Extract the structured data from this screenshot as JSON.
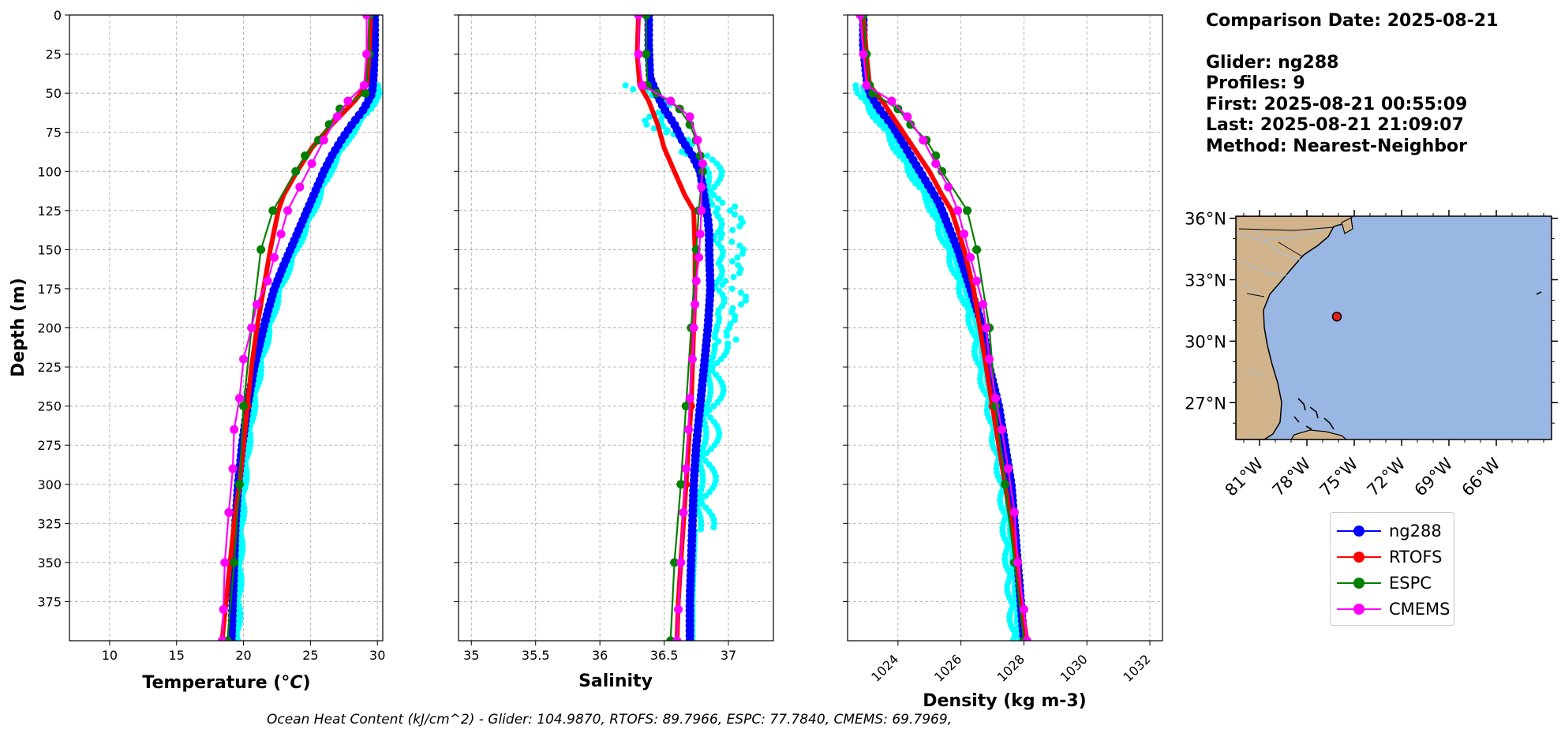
{
  "info": {
    "comparison_date": "Comparison Date: 2025-08-21",
    "glider": "Glider: ng288",
    "profiles": "Profiles: 9",
    "first": "First: 2025-08-21 00:55:09",
    "last": "Last: 2025-08-21 21:09:07",
    "method": "Method: Nearest-Neighbor"
  },
  "footer": "Ocean Heat Content (kJ/cm^2) - Glider: 104.9870,  RTOFS: 89.7966,  ESPC: 77.7840,  CMEMS: 69.7969,",
  "colors": {
    "ng288": "#0000ff",
    "ng288_raw": "#00ffff",
    "RTOFS": "#ff0000",
    "ESPC": "#008000",
    "CMEMS": "#ff00ff",
    "land": "#d2b48c",
    "ocean": "#9ab7e4",
    "grid": "#b0b0b0"
  },
  "legend": [
    {
      "name": "ng288",
      "color": "#0000ff"
    },
    {
      "name": "RTOFS",
      "color": "#ff0000"
    },
    {
      "name": "ESPC",
      "color": "#008000"
    },
    {
      "name": "CMEMS",
      "color": "#ff00ff"
    }
  ],
  "chart_data": [
    {
      "type": "line",
      "xlabel": "Temperature (°C)",
      "ylabel": "Depth (m)",
      "xlim": [
        7,
        30.4
      ],
      "ylim": [
        400,
        0
      ],
      "grid": true,
      "xticks": [
        10,
        15,
        20,
        25,
        30
      ],
      "yticks": [
        0,
        25,
        50,
        75,
        100,
        125,
        150,
        175,
        200,
        225,
        250,
        275,
        300,
        325,
        350,
        375
      ],
      "series": [
        {
          "name": "ng288",
          "depth": [
            0,
            20,
            40,
            50,
            60,
            70,
            80,
            90,
            100,
            110,
            120,
            130,
            140,
            150,
            160,
            175,
            190,
            200,
            225,
            250,
            275,
            300,
            325,
            350,
            375,
            400
          ],
          "values": [
            29.8,
            29.8,
            29.7,
            29.6,
            29.0,
            28.1,
            27.3,
            26.6,
            26.0,
            25.5,
            25.0,
            24.5,
            24.0,
            23.5,
            23.0,
            22.3,
            21.8,
            21.5,
            20.8,
            20.3,
            19.9,
            19.6,
            19.4,
            19.3,
            19.2,
            19.1
          ]
        },
        {
          "name": "RTOFS",
          "depth": [
            0,
            25,
            45,
            55,
            70,
            85,
            100,
            115,
            125,
            150,
            175,
            200,
            225,
            250,
            275,
            300,
            325,
            350,
            375,
            400
          ],
          "values": [
            29.5,
            29.4,
            29.2,
            28.3,
            26.6,
            25.1,
            24.0,
            23.0,
            22.6,
            22.0,
            21.5,
            21.0,
            20.6,
            20.3,
            20.0,
            19.7,
            19.3,
            19.0,
            18.7,
            18.4
          ]
        },
        {
          "name": "ESPC",
          "depth": [
            0,
            25,
            50,
            60,
            70,
            80,
            90,
            100,
            125,
            150,
            200,
            250,
            300,
            350,
            400
          ],
          "values": [
            29.4,
            29.4,
            29.1,
            27.2,
            26.4,
            25.6,
            24.6,
            23.9,
            22.2,
            21.3,
            20.6,
            20.0,
            19.7,
            19.3,
            18.8
          ]
        },
        {
          "name": "CMEMS",
          "depth": [
            0,
            25,
            45,
            55,
            65,
            80,
            95,
            110,
            125,
            140,
            155,
            170,
            185,
            200,
            220,
            245,
            265,
            290,
            318,
            350,
            380,
            400
          ],
          "values": [
            29.2,
            29.2,
            29.0,
            27.8,
            27.0,
            26.0,
            25.1,
            24.2,
            23.3,
            22.8,
            22.3,
            21.8,
            21.0,
            20.6,
            20.0,
            19.7,
            19.3,
            19.2,
            18.9,
            18.6,
            18.5,
            18.4
          ]
        }
      ]
    },
    {
      "type": "line",
      "xlabel": "Salinity",
      "ylabel": "",
      "xlim": [
        34.9,
        37.35
      ],
      "ylim": [
        400,
        0
      ],
      "grid": true,
      "xticks": [
        35.0,
        35.5,
        36.0,
        36.5,
        37.0
      ],
      "series": [
        {
          "name": "ng288",
          "depth": [
            0,
            20,
            40,
            50,
            60,
            70,
            80,
            90,
            100,
            110,
            120,
            130,
            140,
            150,
            175,
            200,
            225,
            250,
            275,
            300,
            325,
            350,
            375,
            400
          ],
          "values": [
            36.38,
            36.38,
            36.39,
            36.44,
            36.5,
            36.58,
            36.64,
            36.72,
            36.78,
            36.8,
            36.82,
            36.84,
            36.85,
            36.85,
            36.86,
            36.84,
            36.81,
            36.78,
            36.75,
            36.73,
            36.72,
            36.71,
            36.7,
            36.7
          ]
        },
        {
          "name": "RTOFS",
          "depth": [
            0,
            25,
            45,
            55,
            70,
            85,
            100,
            115,
            125,
            150,
            175,
            200,
            225,
            250,
            275,
            300,
            325,
            350,
            375,
            400
          ],
          "values": [
            36.3,
            36.29,
            36.31,
            36.38,
            36.45,
            36.5,
            36.58,
            36.66,
            36.73,
            36.74,
            36.74,
            36.73,
            36.72,
            36.71,
            36.69,
            36.67,
            36.65,
            36.63,
            36.61,
            36.6
          ]
        },
        {
          "name": "ESPC",
          "depth": [
            0,
            25,
            45,
            50,
            60,
            70,
            80,
            90,
            100,
            125,
            150,
            200,
            250,
            300,
            350,
            400
          ],
          "values": [
            36.36,
            36.36,
            36.37,
            36.44,
            36.62,
            36.7,
            36.75,
            36.78,
            36.8,
            36.77,
            36.75,
            36.71,
            36.67,
            36.63,
            36.58,
            36.55
          ]
        },
        {
          "name": "CMEMS",
          "depth": [
            0,
            25,
            45,
            55,
            65,
            80,
            95,
            110,
            125,
            140,
            155,
            170,
            185,
            200,
            220,
            245,
            265,
            290,
            318,
            350,
            380,
            400
          ],
          "values": [
            36.3,
            36.3,
            36.33,
            36.55,
            36.7,
            36.76,
            36.8,
            36.79,
            36.79,
            36.78,
            36.77,
            36.75,
            36.74,
            36.73,
            36.72,
            36.7,
            36.69,
            36.67,
            36.65,
            36.63,
            36.61,
            36.6
          ]
        }
      ]
    },
    {
      "type": "line",
      "xlabel": "Density (kg m-3)",
      "ylabel": "",
      "xlim": [
        1022.4,
        1032.4
      ],
      "ylim": [
        400,
        0
      ],
      "grid": true,
      "xticks": [
        1024,
        1026,
        1028,
        1030,
        1032
      ],
      "series": [
        {
          "name": "ng288",
          "depth": [
            0,
            20,
            40,
            50,
            60,
            70,
            80,
            90,
            100,
            110,
            120,
            130,
            140,
            150,
            175,
            200,
            225,
            250,
            275,
            300,
            325,
            350,
            375,
            400
          ],
          "values": [
            1022.9,
            1022.9,
            1023.0,
            1023.1,
            1023.4,
            1023.8,
            1024.1,
            1024.4,
            1024.7,
            1025.0,
            1025.3,
            1025.5,
            1025.7,
            1025.9,
            1026.3,
            1026.7,
            1026.9,
            1027.2,
            1027.4,
            1027.6,
            1027.7,
            1027.8,
            1027.9,
            1028.0
          ]
        },
        {
          "name": "RTOFS",
          "depth": [
            0,
            25,
            45,
            55,
            70,
            85,
            100,
            115,
            125,
            150,
            175,
            200,
            225,
            250,
            275,
            300,
            325,
            350,
            375,
            400
          ],
          "values": [
            1022.9,
            1023.0,
            1023.1,
            1023.5,
            1024.0,
            1024.5,
            1025.0,
            1025.4,
            1025.7,
            1026.1,
            1026.4,
            1026.6,
            1026.8,
            1027.0,
            1027.2,
            1027.4,
            1027.6,
            1027.8,
            1027.9,
            1028.1
          ]
        },
        {
          "name": "ESPC",
          "depth": [
            0,
            25,
            45,
            50,
            60,
            70,
            80,
            90,
            100,
            125,
            150,
            200,
            250,
            300,
            350,
            400
          ],
          "values": [
            1022.9,
            1023.0,
            1023.1,
            1023.2,
            1024.0,
            1024.4,
            1024.9,
            1025.2,
            1025.4,
            1026.2,
            1026.5,
            1026.9,
            1027.1,
            1027.4,
            1027.7,
            1028.0
          ]
        },
        {
          "name": "CMEMS",
          "depth": [
            0,
            25,
            45,
            55,
            65,
            80,
            95,
            110,
            125,
            140,
            155,
            170,
            185,
            200,
            220,
            245,
            265,
            290,
            318,
            350,
            380,
            400
          ],
          "values": [
            1022.8,
            1022.9,
            1023.0,
            1023.8,
            1024.3,
            1024.8,
            1025.2,
            1025.6,
            1025.9,
            1026.1,
            1026.3,
            1026.5,
            1026.7,
            1026.8,
            1026.9,
            1027.1,
            1027.3,
            1027.5,
            1027.7,
            1027.8,
            1028.0,
            1028.1
          ]
        }
      ]
    },
    {
      "type": "map",
      "lon_range": [
        -82.5,
        -62.5
      ],
      "lat_range": [
        25.2,
        36.1
      ],
      "lon_ticks": [
        "81°W",
        "78°W",
        "75°W",
        "72°W",
        "69°W",
        "66°W"
      ],
      "lon_tick_values": [
        -81,
        -78,
        -75,
        -72,
        -69,
        -66
      ],
      "lat_ticks": [
        "36°N",
        "33°N",
        "30°N",
        "27°N"
      ],
      "lat_tick_values": [
        36,
        33,
        30,
        27
      ],
      "glider_position": {
        "lon": -76.1,
        "lat": 31.2
      }
    }
  ]
}
